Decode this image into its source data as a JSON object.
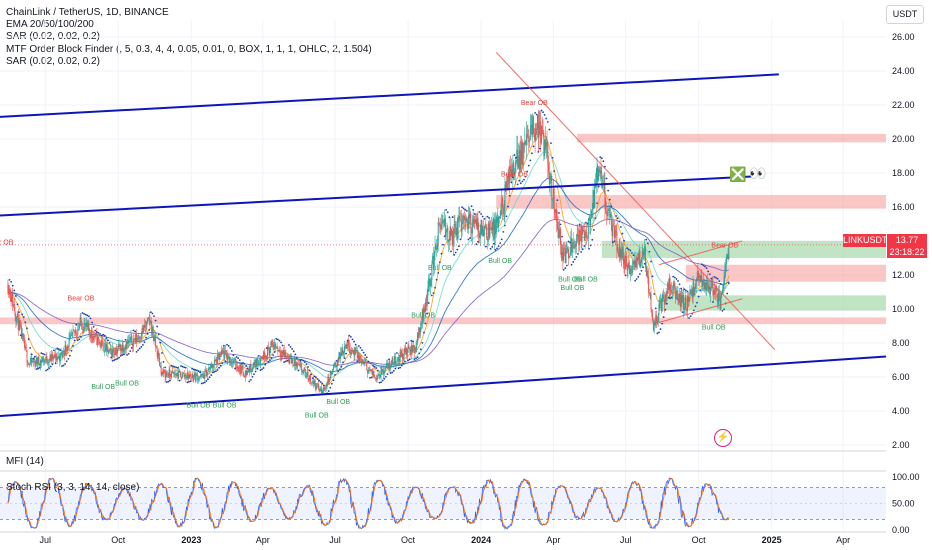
{
  "legend": {
    "symbol": "ChainLink / TetherUS, 1D, BINANCE",
    "ema": "EMA 20/50/100/200",
    "sar1": "SAR (0.02, 0.02, 0.2)",
    "mtf": "MTF Order Block Finder (, 5, 0.3, 4, 4, 0.05, 0.01, 0, BOX, 1, 1, 1, OHLC, 2, 1.504)",
    "sar2": "SAR (0.02, 0.02, 0.2)"
  },
  "currency": "USDT",
  "price_tag": {
    "symbol": "LINKUSDT",
    "price": "13.77",
    "countdown": "23:18:22"
  },
  "mfi_label": "MFI (14)",
  "stoch_label": "Stoch RSI (3, 3, 14, 14, close)",
  "emoji": {
    "cross": "❎",
    "eyes": "👀"
  },
  "colors": {
    "up": "#26a69a",
    "down": "#ef5350",
    "channel": "#0d16b8",
    "ema20": "#ff9800",
    "ema50": "#64d8cb",
    "ema100": "#1565c0",
    "ema200": "#7e57c2",
    "sar": "#1e40af",
    "stoch_k": "#2962ff",
    "stoch_d": "#ff6d00",
    "bear_zone": "#f7a8a8",
    "bull_zone": "#9fd7a4"
  },
  "chart_data": {
    "type": "candlestick",
    "x_ticks": [
      "Jul",
      "Oct",
      "2023",
      "Apr",
      "Jul",
      "Oct",
      "2024",
      "Apr",
      "Jul",
      "Oct",
      "2025",
      "Apr"
    ],
    "y_ticks": [
      "26.00",
      "24.00",
      "22.00",
      "20.00",
      "18.00",
      "16.00",
      "14.00",
      "12.00",
      "10.00",
      "8.00",
      "6.00",
      "4.00",
      "2.00"
    ],
    "ylim": [
      1.7,
      27.0
    ],
    "last_price": 13.77,
    "price_path": [
      {
        "date": "2022-05-15",
        "price": 11.5
      },
      {
        "date": "2022-06-10",
        "price": 6.8
      },
      {
        "date": "2022-07-20",
        "price": 7.2
      },
      {
        "date": "2022-08-15",
        "price": 9.2
      },
      {
        "date": "2022-09-20",
        "price": 7.4
      },
      {
        "date": "2022-10-25",
        "price": 8.3
      },
      {
        "date": "2022-11-10",
        "price": 9.3
      },
      {
        "date": "2022-11-25",
        "price": 6.2
      },
      {
        "date": "2023-01-15",
        "price": 6.0
      },
      {
        "date": "2023-02-10",
        "price": 7.4
      },
      {
        "date": "2023-03-10",
        "price": 6.2
      },
      {
        "date": "2023-04-15",
        "price": 7.9
      },
      {
        "date": "2023-05-20",
        "price": 6.4
      },
      {
        "date": "2023-06-15",
        "price": 5.1
      },
      {
        "date": "2023-07-15",
        "price": 8.0
      },
      {
        "date": "2023-08-20",
        "price": 6.0
      },
      {
        "date": "2023-09-25",
        "price": 7.4
      },
      {
        "date": "2023-10-10",
        "price": 7.7
      },
      {
        "date": "2023-10-25",
        "price": 10.8
      },
      {
        "date": "2023-11-10",
        "price": 15.0
      },
      {
        "date": "2023-11-25",
        "price": 14.2
      },
      {
        "date": "2023-12-10",
        "price": 15.4
      },
      {
        "date": "2023-12-25",
        "price": 14.8
      },
      {
        "date": "2024-01-20",
        "price": 14.6
      },
      {
        "date": "2024-02-10",
        "price": 18.4
      },
      {
        "date": "2024-02-25",
        "price": 19.5
      },
      {
        "date": "2024-03-12",
        "price": 21.0
      },
      {
        "date": "2024-03-25",
        "price": 18.6
      },
      {
        "date": "2024-04-13",
        "price": 13.0
      },
      {
        "date": "2024-04-25",
        "price": 14.0
      },
      {
        "date": "2024-05-15",
        "price": 14.6
      },
      {
        "date": "2024-05-28",
        "price": 18.2
      },
      {
        "date": "2024-06-15",
        "price": 14.4
      },
      {
        "date": "2024-07-05",
        "price": 12.2
      },
      {
        "date": "2024-07-25",
        "price": 13.3
      },
      {
        "date": "2024-08-05",
        "price": 9.1
      },
      {
        "date": "2024-08-25",
        "price": 11.4
      },
      {
        "date": "2024-09-15",
        "price": 10.2
      },
      {
        "date": "2024-10-01",
        "price": 11.8
      },
      {
        "date": "2024-10-15",
        "price": 11.3
      },
      {
        "date": "2024-10-28",
        "price": 10.4
      },
      {
        "date": "2024-11-08",
        "price": 13.77
      }
    ],
    "trendlines": [
      {
        "type": "channel",
        "from": {
          "date": "2022-05-05",
          "price": 21.3
        },
        "to": {
          "date": "2025-01-10",
          "price": 23.8
        }
      },
      {
        "type": "channel",
        "from": {
          "date": "2022-05-05",
          "price": 15.5
        },
        "to": {
          "date": "2024-12-10",
          "price": 17.8
        }
      },
      {
        "type": "channel",
        "from": {
          "date": "2022-05-05",
          "price": 3.7
        },
        "to": {
          "date": "2025-05-25",
          "price": 7.2
        }
      },
      {
        "type": "descending",
        "from": {
          "date": "2024-01-20",
          "price": 25.1
        },
        "to": {
          "date": "2025-01-05",
          "price": 7.6
        }
      },
      {
        "type": "wedge-top",
        "from": {
          "date": "2024-08-12",
          "price": 12.6
        },
        "to": {
          "date": "2024-11-25",
          "price": 14.0
        }
      },
      {
        "type": "wedge-bottom",
        "from": {
          "date": "2024-08-12",
          "price": 9.2
        },
        "to": {
          "date": "2024-11-25",
          "price": 10.6
        }
      }
    ],
    "zones": [
      {
        "kind": "bear",
        "from": "2024-05-01",
        "to": "2025-05-25",
        "top": 20.3,
        "bottom": 19.8
      },
      {
        "kind": "bear",
        "from": "2024-01-20",
        "to": "2025-05-25",
        "top": 16.7,
        "bottom": 15.9
      },
      {
        "kind": "bear",
        "from": "2024-09-15",
        "to": "2025-05-25",
        "top": 12.6,
        "bottom": 11.6
      },
      {
        "kind": "bull",
        "from": "2024-06-01",
        "to": "2025-05-25",
        "top": 14.0,
        "bottom": 13.0
      },
      {
        "kind": "bull",
        "from": "2024-08-12",
        "to": "2025-05-25",
        "top": 10.8,
        "bottom": 9.9
      },
      {
        "kind": "bear",
        "from": "2022-05-05",
        "to": "2025-05-25",
        "top": 9.5,
        "bottom": 9.1
      }
    ],
    "ob_labels": [
      {
        "text": "Bear OB",
        "date": "2022-05-05",
        "price": 13.8,
        "kind": "bear"
      },
      {
        "text": "Bear OB",
        "date": "2022-08-15",
        "price": 10.5,
        "kind": "bear"
      },
      {
        "text": "Bull OB",
        "date": "2022-09-12",
        "price": 5.3,
        "kind": "bull"
      },
      {
        "text": "Bull OB",
        "date": "2022-10-12",
        "price": 5.5,
        "kind": "bull"
      },
      {
        "text": "Bull OB",
        "date": "2023-01-10",
        "price": 4.2,
        "kind": "bull"
      },
      {
        "text": "Bull OB",
        "date": "2023-02-12",
        "price": 4.2,
        "kind": "bull"
      },
      {
        "text": "Bull OB",
        "date": "2023-06-08",
        "price": 3.6,
        "kind": "bull"
      },
      {
        "text": "Bull OB",
        "date": "2023-07-05",
        "price": 4.4,
        "kind": "bull"
      },
      {
        "text": "Bull OB",
        "date": "2023-10-20",
        "price": 9.5,
        "kind": "bull"
      },
      {
        "text": "Bull OB",
        "date": "2023-11-10",
        "price": 12.3,
        "kind": "bull"
      },
      {
        "text": "Bull OB",
        "date": "2024-01-25",
        "price": 12.7,
        "kind": "bull"
      },
      {
        "text": "Bear OB",
        "date": "2024-03-08",
        "price": 22.0,
        "kind": "bear"
      },
      {
        "text": "Bear OB",
        "date": "2024-02-12",
        "price": 17.8,
        "kind": "bear"
      },
      {
        "text": "Bull OB",
        "date": "2024-04-22",
        "price": 11.6,
        "kind": "bull"
      },
      {
        "text": "Bull OB",
        "date": "2024-05-12",
        "price": 11.6,
        "kind": "bull"
      },
      {
        "text": "Bull OB",
        "date": "2024-04-25",
        "price": 11.1,
        "kind": "bull"
      },
      {
        "text": "Bear OB",
        "date": "2024-11-03",
        "price": 13.6,
        "kind": "bear"
      },
      {
        "text": "Bull OB",
        "date": "2024-10-20",
        "price": 8.8,
        "kind": "bull"
      }
    ],
    "stoch_ticks": [
      "100.00",
      "50.00",
      "0.00"
    ],
    "stoch_bands": [
      80,
      20
    ]
  }
}
